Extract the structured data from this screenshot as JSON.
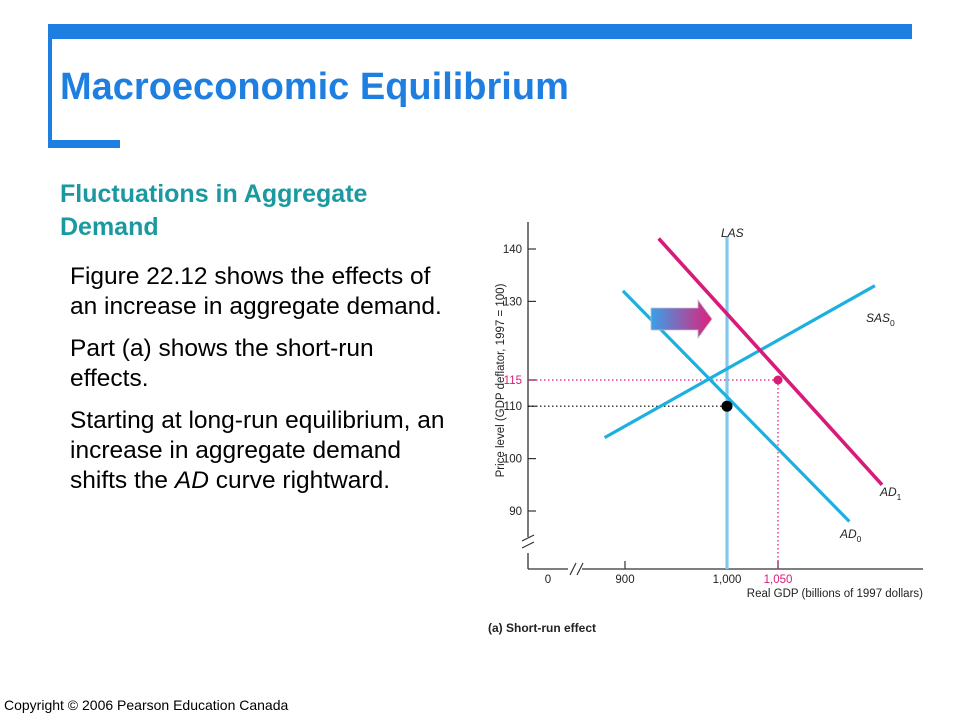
{
  "slide": {
    "title": "Macroeconomic Equilibrium",
    "subtitle": "Fluctuations in Aggregate Demand",
    "paragraphs": [
      "Figure 22.12 shows the effects of an increase in aggregate demand.",
      "Part (a) shows the short-run effects."
    ],
    "paragraph3": {
      "before": "Starting at long-run equilibrium, an increase in aggregate demand shifts the ",
      "em": "AD",
      "after": " curve rightward."
    },
    "copyright": "Copyright © 2006 Pearson Education Canada"
  },
  "colors": {
    "accent_blue": "#1f7fe0",
    "title_blue": "#1f7fe0",
    "subtitle_teal": "#1a9aa0",
    "curve_cyan": "#1bb0e0",
    "las_blue": "#80c8f0",
    "ad1_magenta": "#d81b78",
    "guide_magenta": "#d81b78",
    "axis": "#333333"
  },
  "chart_data": {
    "type": "line",
    "caption": "(a) Short-run effect",
    "xlabel": "Real GDP (billions of 1997 dollars)",
    "ylabel": "Price level (GDP deflator, 1997 = 100)",
    "x_ticks": [
      {
        "value": 900,
        "label": "900"
      },
      {
        "value": 1000,
        "label": "1,000"
      },
      {
        "value": 1050,
        "label": "1,050",
        "highlight": true
      }
    ],
    "x_origin_label": "0",
    "y_ticks": [
      {
        "value": 90,
        "label": "90"
      },
      {
        "value": 100,
        "label": "100"
      },
      {
        "value": 110,
        "label": "110"
      },
      {
        "value": 115,
        "label": "115",
        "highlight": true
      },
      {
        "value": 130,
        "label": "130"
      },
      {
        "value": 140,
        "label": "140"
      }
    ],
    "xlim": [
      860,
      1160
    ],
    "ylim": [
      85,
      143
    ],
    "series": [
      {
        "name": "LAS",
        "label": "LAS",
        "points": [
          [
            1000,
            143
          ],
          [
            1000,
            78
          ]
        ]
      },
      {
        "name": "SAS0",
        "label": "SAS",
        "sub": "0",
        "points": [
          [
            880,
            104
          ],
          [
            1145,
            133
          ]
        ]
      },
      {
        "name": "AD0",
        "label": "AD",
        "sub": "0",
        "points": [
          [
            898,
            132
          ],
          [
            1120,
            88
          ]
        ]
      },
      {
        "name": "AD1",
        "label": "AD",
        "sub": "1",
        "points": [
          [
            933,
            142
          ],
          [
            1152,
            95
          ]
        ]
      }
    ],
    "equilibria": [
      {
        "x": 1000,
        "y": 110,
        "color": "#000000"
      },
      {
        "x": 1050,
        "y": 115,
        "color": "#d81b78"
      }
    ]
  }
}
